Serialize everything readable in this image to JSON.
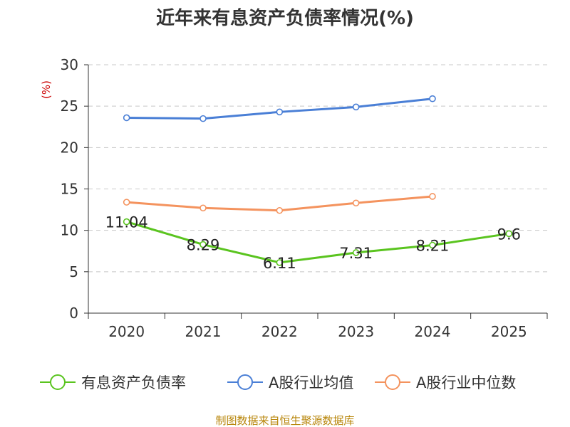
{
  "chart_data": {
    "type": "line",
    "title": "近年来有息资产负债率情况(%)",
    "ylabel": "(%)",
    "categories": [
      "2020",
      "2021",
      "2022",
      "2023",
      "2024",
      "2025"
    ],
    "ylim": [
      0,
      30
    ],
    "yticks": [
      0,
      5,
      10,
      15,
      20,
      25,
      30
    ],
    "grid": true,
    "legend_position": "bottom",
    "series": [
      {
        "name": "有息资产负债率",
        "color": "#5ac41f",
        "values": [
          11.04,
          8.29,
          6.11,
          7.31,
          8.21,
          9.6
        ],
        "labels": [
          "11.04",
          "8.29",
          "6.11",
          "7.31",
          "8.21",
          "9.6"
        ]
      },
      {
        "name": "A股行业均值",
        "color": "#4a7fd6",
        "values": [
          23.6,
          23.5,
          24.3,
          24.9,
          25.9,
          null
        ]
      },
      {
        "name": "A股行业中位数",
        "color": "#f4935e",
        "values": [
          13.4,
          12.7,
          12.4,
          13.3,
          14.1,
          null
        ]
      }
    ]
  },
  "source": "制图数据来自恒生聚源数据库"
}
